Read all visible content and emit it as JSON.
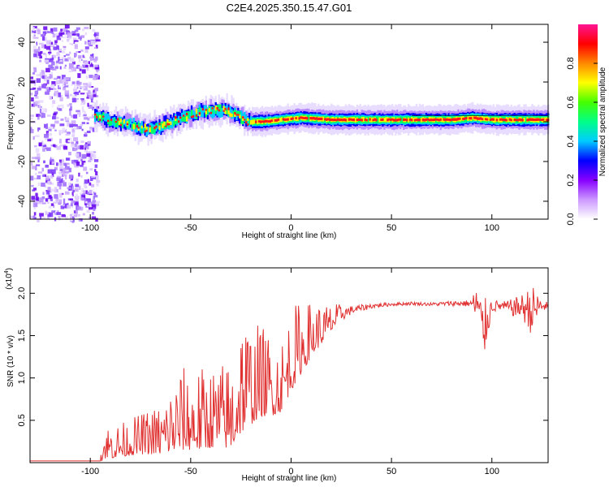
{
  "title": "C2E4.2025.350.15.47.G01",
  "chart_data": [
    {
      "type": "heatmap",
      "xlabel": "Height of straight line (km)",
      "ylabel": "Frequency (Hz)",
      "xlim": [
        -130,
        128
      ],
      "ylim": [
        -49,
        49
      ],
      "xticks": [
        -100,
        -50,
        0,
        50,
        100
      ],
      "yticks": [
        -40,
        -20,
        0,
        20,
        40
      ],
      "colorbar": {
        "label": "Normalized spectral amplitude",
        "range": [
          0,
          1
        ],
        "ticks": [
          "0.0",
          "0.2",
          "0.4",
          "0.6",
          "0.8"
        ],
        "colors": [
          "#ffffff",
          "#cc99ff",
          "#8800ff",
          "#0000ff",
          "#00ccff",
          "#00ff88",
          "#44ff00",
          "#ffff00",
          "#ff8800",
          "#ff0000",
          "#ff1493"
        ]
      },
      "ridge": {
        "x": [
          -98,
          -90,
          -80,
          -72,
          -65,
          -55,
          -45,
          -35,
          -28,
          -22,
          -15,
          -5,
          5,
          20,
          40,
          60,
          80,
          90,
          100,
          110,
          120,
          128
        ],
        "freq": [
          3,
          0,
          -1,
          -4,
          -2,
          2,
          5,
          6,
          4,
          0,
          0,
          1,
          2,
          1,
          1,
          1,
          1,
          2,
          1,
          1,
          1,
          1
        ]
      },
      "noise_region_x": [
        -130,
        -97
      ]
    },
    {
      "type": "line",
      "xlabel": "Height of straight line (km)",
      "ylabel": "SNR (10 * v/v)",
      "multiplier_label": "(x10",
      "multiplier_exp": "4",
      "xlim": [
        -130,
        128
      ],
      "ylim": [
        0,
        2.3
      ],
      "xticks": [
        -100,
        -50,
        0,
        50,
        100
      ],
      "yticks": [
        "0.5",
        "1.0",
        "1.5",
        "2.0"
      ],
      "line_color": "#e03030",
      "envelope": {
        "x": [
          -130,
          -96,
          -93,
          -90,
          -85,
          -75,
          -65,
          -55,
          -45,
          -35,
          -30,
          -25,
          -20,
          -15,
          -10,
          -5,
          0,
          5,
          10,
          15,
          20,
          25,
          30,
          40,
          50,
          60,
          70,
          80,
          90,
          93,
          95,
          100,
          105,
          110,
          115,
          120,
          125,
          128
        ],
        "base": [
          0.02,
          0.02,
          0.1,
          0.1,
          0.12,
          0.15,
          0.15,
          0.2,
          0.2,
          0.25,
          0.2,
          0.4,
          0.5,
          0.6,
          0.6,
          0.65,
          0.9,
          1.1,
          1.3,
          1.45,
          1.6,
          1.75,
          1.8,
          1.85,
          1.87,
          1.88,
          1.87,
          1.88,
          1.88,
          1.85,
          1.5,
          1.85,
          1.85,
          1.83,
          1.84,
          1.8,
          1.85,
          1.85
        ],
        "amp": [
          0.0,
          0.0,
          0.18,
          0.2,
          0.18,
          0.22,
          0.28,
          0.45,
          0.45,
          0.45,
          0.5,
          0.7,
          0.55,
          0.5,
          0.45,
          0.4,
          0.45,
          0.4,
          0.3,
          0.22,
          0.15,
          0.08,
          0.05,
          0.03,
          0.02,
          0.02,
          0.02,
          0.03,
          0.04,
          0.35,
          0.45,
          0.08,
          0.05,
          0.1,
          0.15,
          0.3,
          0.08,
          0.04
        ]
      }
    }
  ]
}
